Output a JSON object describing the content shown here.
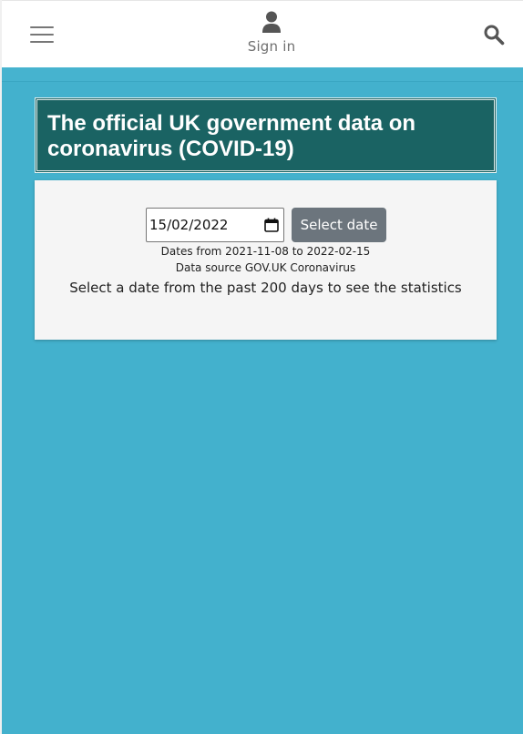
{
  "header": {
    "menu_icon": "hamburger-menu-icon",
    "user_icon": "user-icon",
    "signin_label": "Sign in",
    "search_icon": "search-icon"
  },
  "banner": {
    "title": "The official UK government data on coronavirus (COVID-19)"
  },
  "date_picker": {
    "value": "15/02/2022",
    "calendar_icon": "calendar-icon",
    "button_label": "Select date"
  },
  "info": {
    "date_range": "Dates from 2021-11-08 to 2022-02-15",
    "data_source": "Data source GOV.UK Coronavirus",
    "instructions": "Select a date from the past 200 days to see the statistics"
  },
  "colors": {
    "background": "#43b1cd",
    "title_background": "#1a6363",
    "button_background": "#6c757d",
    "panel_background": "#f5f5f5"
  }
}
